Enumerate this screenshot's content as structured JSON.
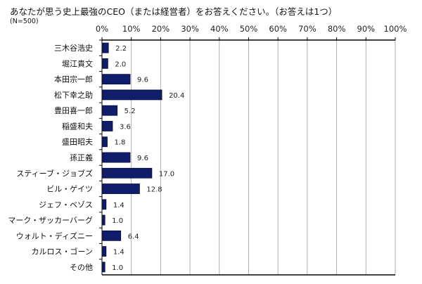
{
  "chart_data": {
    "type": "bar",
    "orientation": "horizontal",
    "title": "あなたが思う史上最強のCEO（または経営者）をお答えください。（お答えは1つ）",
    "subtitle": "(N=500)",
    "xlabel": "",
    "ylabel": "",
    "xlim": [
      0,
      100
    ],
    "x_ticks": [
      "0%",
      "10%",
      "20%",
      "30%",
      "40%",
      "50%",
      "60%",
      "70%",
      "80%",
      "90%",
      "100%"
    ],
    "x_axis_position": "top",
    "grid": true,
    "categories": [
      "三木谷浩史",
      "堀江貴文",
      "本田宗一郎",
      "松下幸之助",
      "豊田喜一郎",
      "稲盛和夫",
      "盛田昭夫",
      "孫正義",
      "スティーブ・ジョブズ",
      "ビル・ゲイツ",
      "ジェフ・ベゾス",
      "マーク・ザッカーバーグ",
      "ウォルト・ディズニー",
      "カルロス・ゴーン",
      "その他"
    ],
    "values": [
      2.2,
      2.0,
      9.6,
      20.4,
      5.2,
      3.6,
      1.8,
      9.6,
      17.0,
      12.8,
      1.4,
      1.0,
      6.4,
      1.4,
      1.0
    ],
    "value_labels": [
      "2.2",
      "2.0",
      "9.6",
      "20.4",
      "5.2",
      "3.6",
      "1.8",
      "9.6",
      "17.0",
      "12.8",
      "1.4",
      "1.0",
      "6.4",
      "1.4",
      "1.0"
    ],
    "colors": {
      "bar": "#0f1d6b",
      "bar_border": "#050c3a",
      "grid": "#b0b0b0",
      "axis": "#000000"
    }
  }
}
